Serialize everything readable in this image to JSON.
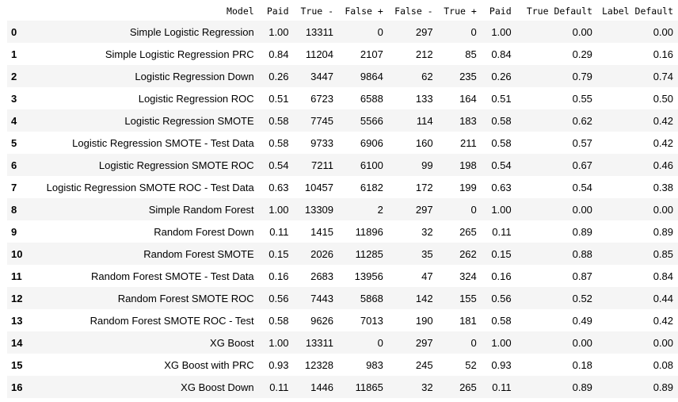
{
  "table": {
    "index_header": "",
    "columns": [
      "Model",
      "Paid",
      "True -",
      "False +",
      "False -",
      "True +",
      "Paid",
      "True Default",
      "Label Default"
    ],
    "rows": [
      {
        "index": "0",
        "cells": [
          "Simple Logistic Regression",
          "1.00",
          "13311",
          "0",
          "297",
          "0",
          "1.00",
          "0.00",
          "0.00"
        ]
      },
      {
        "index": "1",
        "cells": [
          "Simple Logistic Regression PRC",
          "0.84",
          "11204",
          "2107",
          "212",
          "85",
          "0.84",
          "0.29",
          "0.16"
        ]
      },
      {
        "index": "2",
        "cells": [
          "Logistic Regression Down",
          "0.26",
          "3447",
          "9864",
          "62",
          "235",
          "0.26",
          "0.79",
          "0.74"
        ]
      },
      {
        "index": "3",
        "cells": [
          "Logistic Regression ROC",
          "0.51",
          "6723",
          "6588",
          "133",
          "164",
          "0.51",
          "0.55",
          "0.50"
        ]
      },
      {
        "index": "4",
        "cells": [
          "Logistic Regression SMOTE",
          "0.58",
          "7745",
          "5566",
          "114",
          "183",
          "0.58",
          "0.62",
          "0.42"
        ]
      },
      {
        "index": "5",
        "cells": [
          "Logistic Regression SMOTE - Test Data",
          "0.58",
          "9733",
          "6906",
          "160",
          "211",
          "0.58",
          "0.57",
          "0.42"
        ]
      },
      {
        "index": "6",
        "cells": [
          "Logistic Regression SMOTE ROC",
          "0.54",
          "7211",
          "6100",
          "99",
          "198",
          "0.54",
          "0.67",
          "0.46"
        ]
      },
      {
        "index": "7",
        "cells": [
          "Logistic Regression SMOTE ROC - Test Data",
          "0.63",
          "10457",
          "6182",
          "172",
          "199",
          "0.63",
          "0.54",
          "0.38"
        ]
      },
      {
        "index": "8",
        "cells": [
          "Simple Random Forest",
          "1.00",
          "13309",
          "2",
          "297",
          "0",
          "1.00",
          "0.00",
          "0.00"
        ]
      },
      {
        "index": "9",
        "cells": [
          "Random Forest Down",
          "0.11",
          "1415",
          "11896",
          "32",
          "265",
          "0.11",
          "0.89",
          "0.89"
        ]
      },
      {
        "index": "10",
        "cells": [
          "Random Forest SMOTE",
          "0.15",
          "2026",
          "11285",
          "35",
          "262",
          "0.15",
          "0.88",
          "0.85"
        ]
      },
      {
        "index": "11",
        "cells": [
          "Random Forest SMOTE - Test Data",
          "0.16",
          "2683",
          "13956",
          "47",
          "324",
          "0.16",
          "0.87",
          "0.84"
        ]
      },
      {
        "index": "12",
        "cells": [
          "Random Forest SMOTE ROC",
          "0.56",
          "7443",
          "5868",
          "142",
          "155",
          "0.56",
          "0.52",
          "0.44"
        ]
      },
      {
        "index": "13",
        "cells": [
          "Random Forest SMOTE ROC - Test",
          "0.58",
          "9626",
          "7013",
          "190",
          "181",
          "0.58",
          "0.49",
          "0.42"
        ]
      },
      {
        "index": "14",
        "cells": [
          "XG Boost",
          "1.00",
          "13311",
          "0",
          "297",
          "0",
          "1.00",
          "0.00",
          "0.00"
        ]
      },
      {
        "index": "15",
        "cells": [
          "XG Boost with PRC",
          "0.93",
          "12328",
          "983",
          "245",
          "52",
          "0.93",
          "0.18",
          "0.08"
        ]
      },
      {
        "index": "16",
        "cells": [
          "XG Boost Down",
          "0.11",
          "1446",
          "11865",
          "32",
          "265",
          "0.11",
          "0.89",
          "0.89"
        ]
      }
    ]
  }
}
